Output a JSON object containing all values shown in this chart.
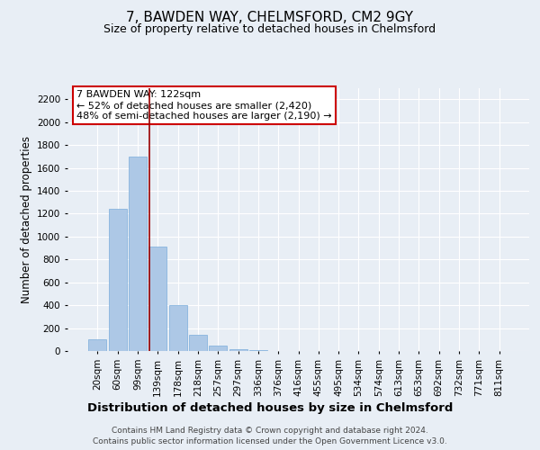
{
  "title": "7, BAWDEN WAY, CHELMSFORD, CM2 9GY",
  "subtitle": "Size of property relative to detached houses in Chelmsford",
  "xlabel": "Distribution of detached houses by size in Chelmsford",
  "ylabel": "Number of detached properties",
  "categories": [
    "20sqm",
    "60sqm",
    "99sqm",
    "139sqm",
    "178sqm",
    "218sqm",
    "257sqm",
    "297sqm",
    "336sqm",
    "376sqm",
    "416sqm",
    "455sqm",
    "495sqm",
    "534sqm",
    "574sqm",
    "613sqm",
    "653sqm",
    "692sqm",
    "732sqm",
    "771sqm",
    "811sqm"
  ],
  "values": [
    100,
    1240,
    1700,
    910,
    400,
    140,
    50,
    12,
    5,
    2,
    1,
    0,
    0,
    0,
    0,
    0,
    0,
    0,
    0,
    0,
    0
  ],
  "bar_color": "#adc8e6",
  "bar_edge_color": "#7aaddb",
  "vline_color": "#990000",
  "annotation_text": "7 BAWDEN WAY: 122sqm\n← 52% of detached houses are smaller (2,420)\n48% of semi-detached houses are larger (2,190) →",
  "annotation_box_color": "#ffffff",
  "annotation_box_edge_color": "#cc0000",
  "ylim": [
    0,
    2300
  ],
  "yticks": [
    0,
    200,
    400,
    600,
    800,
    1000,
    1200,
    1400,
    1600,
    1800,
    2000,
    2200
  ],
  "bg_color": "#e8eef5",
  "plot_bg_color": "#e8eef5",
  "footer_line1": "Contains HM Land Registry data © Crown copyright and database right 2024.",
  "footer_line2": "Contains public sector information licensed under the Open Government Licence v3.0.",
  "title_fontsize": 11,
  "subtitle_fontsize": 9,
  "xlabel_fontsize": 9.5,
  "ylabel_fontsize": 8.5,
  "tick_fontsize": 7.5,
  "footer_fontsize": 6.5,
  "ann_fontsize": 8
}
